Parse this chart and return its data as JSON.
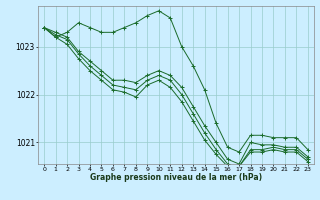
{
  "title": "Graphe pression niveau de la mer (hPa)",
  "bg_color": "#cceeff",
  "grid_color": "#99cccc",
  "line_color": "#1a6b2a",
  "marker_color": "#1a6b2a",
  "xlim": [
    -0.5,
    23.5
  ],
  "ylim": [
    1020.55,
    1023.85
  ],
  "yticks": [
    1021,
    1022,
    1023
  ],
  "xticks": [
    0,
    1,
    2,
    3,
    4,
    5,
    6,
    7,
    8,
    9,
    10,
    11,
    12,
    13,
    14,
    15,
    16,
    17,
    18,
    19,
    20,
    21,
    22,
    23
  ],
  "series": [
    [
      1023.4,
      1023.2,
      1023.3,
      1023.5,
      1023.4,
      1023.3,
      1023.3,
      1023.4,
      1023.5,
      1023.65,
      1023.75,
      1023.6,
      1023.0,
      1022.6,
      1022.1,
      1021.4,
      1020.9,
      1020.8,
      1021.15,
      1021.15,
      1021.1,
      1021.1,
      1021.1,
      1020.85
    ],
    [
      1023.4,
      1023.3,
      1023.2,
      1022.9,
      1022.7,
      1022.5,
      1022.3,
      1022.3,
      1022.25,
      1022.4,
      1022.5,
      1022.4,
      1022.15,
      1021.75,
      1021.35,
      1021.0,
      1020.65,
      1020.55,
      1021.0,
      1020.95,
      1020.95,
      1020.9,
      1020.9,
      1020.7
    ],
    [
      1023.4,
      1023.25,
      1023.15,
      1022.85,
      1022.6,
      1022.4,
      1022.2,
      1022.15,
      1022.1,
      1022.3,
      1022.4,
      1022.3,
      1022.0,
      1021.6,
      1021.2,
      1020.85,
      1020.55,
      1020.5,
      1020.85,
      1020.85,
      1020.9,
      1020.85,
      1020.85,
      1020.65
    ],
    [
      1023.4,
      1023.2,
      1023.05,
      1022.75,
      1022.5,
      1022.3,
      1022.1,
      1022.05,
      1021.95,
      1022.2,
      1022.3,
      1022.15,
      1021.85,
      1021.45,
      1021.05,
      1020.75,
      1020.5,
      1020.5,
      1020.8,
      1020.8,
      1020.85,
      1020.8,
      1020.8,
      1020.6
    ]
  ]
}
